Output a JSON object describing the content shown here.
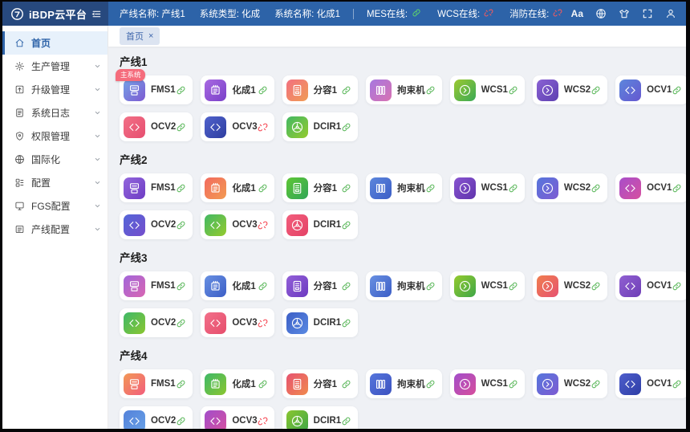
{
  "colors": {
    "header_bg": "#2d63a8",
    "logo_block_bg": "#27497e",
    "accent_blue": "#2d63a8",
    "online_green": "#5cb85c",
    "offline_red": "#f5424e",
    "content_bg": "#eff1f5",
    "badge_pink": "#f56c7c",
    "tab_chip_bg": "#dce4f1"
  },
  "header": {
    "app_title": "iBDP云平台",
    "info": [
      {
        "label": "产线名称:",
        "value": "产线1"
      },
      {
        "label": "系统类型:",
        "value": "化成"
      },
      {
        "label": "系统名称:",
        "value": "化成1"
      }
    ],
    "status": [
      {
        "label": "MES在线:",
        "online": true
      },
      {
        "label": "WCS在线:",
        "online": false
      },
      {
        "label": "消防在线:",
        "online": false
      }
    ],
    "font_tool_label": "Aa",
    "tool_icons": [
      "font-size",
      "language-globe",
      "theme-skin",
      "fullscreen",
      "user"
    ]
  },
  "sidebar": {
    "items": [
      {
        "key": "home",
        "label": "首页",
        "icon": "home",
        "active": true,
        "expandable": false
      },
      {
        "key": "production-management",
        "label": "生产管理",
        "icon": "production",
        "active": false,
        "expandable": true
      },
      {
        "key": "upgrade-management",
        "label": "升级管理",
        "icon": "upgrade",
        "active": false,
        "expandable": true
      },
      {
        "key": "system-logs",
        "label": "系统日志",
        "icon": "logs",
        "active": false,
        "expandable": true
      },
      {
        "key": "permission-management",
        "label": "权限管理",
        "icon": "permission",
        "active": false,
        "expandable": true
      },
      {
        "key": "internationalization",
        "label": "国际化",
        "icon": "globe",
        "active": false,
        "expandable": true
      },
      {
        "key": "configuration",
        "label": "配置",
        "icon": "config",
        "active": false,
        "expandable": true
      },
      {
        "key": "fgs-configuration",
        "label": "FGS配置",
        "icon": "fgs",
        "active": false,
        "expandable": true
      },
      {
        "key": "line-configuration",
        "label": "产线配置",
        "icon": "lineconfig",
        "active": false,
        "expandable": true
      }
    ]
  },
  "tabbar": {
    "tabs": [
      {
        "label": "首页",
        "closable": true
      }
    ]
  },
  "main": {
    "badge_label": "主系统",
    "sections": [
      {
        "title": "产线1",
        "cards": [
          {
            "label": "FMS1",
            "icon": "fms",
            "from": "#74a2e6",
            "to": "#7e5ad2",
            "online": true,
            "badge": true
          },
          {
            "label": "化成1",
            "icon": "chip",
            "from": "#a86ae2",
            "to": "#7a40c8",
            "online": true
          },
          {
            "label": "分容1",
            "icon": "cabinet",
            "from": "#f27080",
            "to": "#f09c54",
            "online": true
          },
          {
            "label": "拘束机",
            "icon": "books",
            "from": "#a678e0",
            "to": "#d872b2",
            "online": true
          },
          {
            "label": "WCS1",
            "icon": "wcs",
            "from": "#9cc830",
            "to": "#3aaa56",
            "online": true
          },
          {
            "label": "WCS2",
            "icon": "wcs",
            "from": "#8a62d4",
            "to": "#5e40b0",
            "online": true
          },
          {
            "label": "OCV1",
            "icon": "ocv",
            "from": "#5c86dc",
            "to": "#6658d0",
            "online": true
          },
          {
            "label": "OCV2",
            "icon": "ocv",
            "from": "#f27086",
            "to": "#e64e70",
            "online": true
          },
          {
            "label": "OCV3",
            "icon": "ocv",
            "from": "#5062cc",
            "to": "#2e3ea0",
            "online": false
          },
          {
            "label": "DCIR1",
            "icon": "dcir",
            "from": "#42b864",
            "to": "#94ca2e",
            "online": true
          }
        ]
      },
      {
        "title": "产线2",
        "cards": [
          {
            "label": "FMS1",
            "icon": "fms",
            "from": "#9266dc",
            "to": "#6e3cc4",
            "online": true
          },
          {
            "label": "化成1",
            "icon": "chip",
            "from": "#f26a5e",
            "to": "#f29a52",
            "online": true
          },
          {
            "label": "分容1",
            "icon": "cabinet",
            "from": "#5ec634",
            "to": "#32a658",
            "online": true
          },
          {
            "label": "拘束机",
            "icon": "books",
            "from": "#5c86dc",
            "to": "#3c5ec6",
            "online": true
          },
          {
            "label": "WCS1",
            "icon": "wcs",
            "from": "#8854d0",
            "to": "#6034ac",
            "online": true
          },
          {
            "label": "WCS2",
            "icon": "wcs",
            "from": "#5676dc",
            "to": "#7e5cd2",
            "online": true
          },
          {
            "label": "OCV1",
            "icon": "ocv",
            "from": "#a84eca",
            "to": "#d650a0",
            "online": true
          },
          {
            "label": "OCV2",
            "icon": "ocv",
            "from": "#5466d8",
            "to": "#744ecc",
            "online": true
          },
          {
            "label": "OCV3",
            "icon": "ocv",
            "from": "#42b864",
            "to": "#94ca2e",
            "online": false
          },
          {
            "label": "DCIR1",
            "icon": "dcir",
            "from": "#f25e7c",
            "to": "#e44266",
            "online": true
          }
        ]
      },
      {
        "title": "产线3",
        "cards": [
          {
            "label": "FMS1",
            "icon": "fms",
            "from": "#a266da",
            "to": "#d866b2",
            "online": true
          },
          {
            "label": "化成1",
            "icon": "chip",
            "from": "#6890e2",
            "to": "#3c5ec6",
            "online": true
          },
          {
            "label": "分容1",
            "icon": "cabinet",
            "from": "#9260d8",
            "to": "#6c3ac0",
            "online": true
          },
          {
            "label": "拘束机",
            "icon": "books",
            "from": "#6890e2",
            "to": "#3c5ec6",
            "online": true
          },
          {
            "label": "WCS1",
            "icon": "wcs",
            "from": "#94ca2e",
            "to": "#3ea648",
            "online": true
          },
          {
            "label": "WCS2",
            "icon": "wcs",
            "from": "#f07e4e",
            "to": "#e65270",
            "online": true
          },
          {
            "label": "OCV1",
            "icon": "ocv",
            "from": "#9060d2",
            "to": "#6e3eb6",
            "online": true
          },
          {
            "label": "OCV2",
            "icon": "ocv",
            "from": "#3eb868",
            "to": "#8ac630",
            "online": true
          },
          {
            "label": "OCV3",
            "icon": "ocv",
            "from": "#f2708a",
            "to": "#e64e6c",
            "online": false
          },
          {
            "label": "DCIR1",
            "icon": "dcir",
            "from": "#3c5ec6",
            "to": "#5a8ae2",
            "online": true
          }
        ]
      },
      {
        "title": "产线4",
        "cards": [
          {
            "label": "FMS1",
            "icon": "fms",
            "from": "#f29856",
            "to": "#f25e7c",
            "online": true
          },
          {
            "label": "化成1",
            "icon": "chip",
            "from": "#3eb868",
            "to": "#8ac630",
            "online": true
          },
          {
            "label": "分容1",
            "icon": "cabinet",
            "from": "#e65270",
            "to": "#f08a4e",
            "online": true
          },
          {
            "label": "拘束机",
            "icon": "books",
            "from": "#5676dc",
            "to": "#3c52c0",
            "online": true
          },
          {
            "label": "WCS1",
            "icon": "wcs",
            "from": "#a24eca",
            "to": "#d64e9c",
            "online": true
          },
          {
            "label": "WCS2",
            "icon": "wcs",
            "from": "#5676dc",
            "to": "#7e5cd2",
            "online": true
          },
          {
            "label": "OCV1",
            "icon": "ocv",
            "from": "#4e5ecc",
            "to": "#2e3ea6",
            "online": true
          },
          {
            "label": "OCV2",
            "icon": "ocv",
            "from": "#5482da",
            "to": "#68a0e6",
            "online": true
          },
          {
            "label": "OCV3",
            "icon": "ocv",
            "from": "#a24eca",
            "to": "#d650a0",
            "online": false
          },
          {
            "label": "DCIR1",
            "icon": "dcir",
            "from": "#8ac630",
            "to": "#3ea648",
            "online": true
          }
        ]
      }
    ]
  }
}
